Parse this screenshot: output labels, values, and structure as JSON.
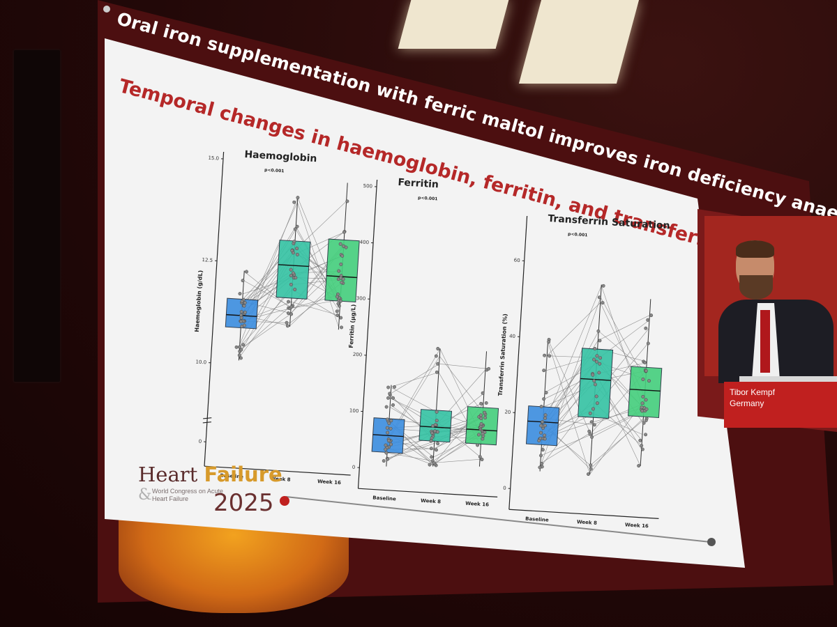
{
  "slide": {
    "header": "Oral iron supplementation with ferric maltol improves iron deficiency anaemia in patients with chr…",
    "subtitle": "Temporal changes in haemoglobin, ferritin, and transferrin saturation"
  },
  "speaker": {
    "name": "Tibor Kempf",
    "country": "Germany"
  },
  "logo": {
    "line1_a": "Heart",
    "line1_b": "Failure",
    "amp": "&",
    "line2": "World Congress on Acute Heart Failure",
    "year": "2025"
  },
  "colors": {
    "baseline": "#3c8ee0",
    "week8": "#35c3a4",
    "week16": "#45cf7d",
    "subtitle": "#b52828",
    "accent_red": "#c0201f"
  },
  "chart_data": [
    {
      "type": "box",
      "title": "Haemoglobin",
      "pvalue": "p<0.001",
      "ylabel": "Haemoglobin (g/dL)",
      "categories": [
        "Baseline",
        "Week 8",
        "Week 16"
      ],
      "yticks": [
        0,
        10.0,
        12.5,
        15.0
      ],
      "ytick_labels": [
        "0",
        "10.0",
        "12.5",
        "15.0"
      ],
      "axis_break": true,
      "boxes": [
        {
          "q1": 10.9,
          "median": 11.2,
          "q3": 11.6,
          "min": 10.1,
          "max": 12.3
        },
        {
          "q1": 11.7,
          "median": 12.5,
          "q3": 13.1,
          "min": 11.0,
          "max": 14.2
        },
        {
          "q1": 11.7,
          "median": 12.3,
          "q3": 13.2,
          "min": 11.0,
          "max": 14.6
        }
      ]
    },
    {
      "type": "box",
      "title": "Ferritin",
      "pvalue": "p<0.001",
      "ylabel": "Ferritin (µg/L)",
      "categories": [
        "Baseline",
        "Week 8",
        "Week 16"
      ],
      "yticks": [
        0,
        100,
        200,
        300,
        400,
        500
      ],
      "ytick_labels": [
        "0",
        "100",
        "200",
        "300",
        "400",
        "500"
      ],
      "boxes": [
        {
          "q1": 30,
          "median": 60,
          "q3": 90,
          "min": 5,
          "max": 150
        },
        {
          "q1": 55,
          "median": 80,
          "q3": 110,
          "min": 10,
          "max": 220
        },
        {
          "q1": 55,
          "median": 80,
          "q3": 120,
          "min": 15,
          "max": 220
        }
      ]
    },
    {
      "type": "box",
      "title": "Transferrin Saturation",
      "pvalue": "p<0.001",
      "ylabel": "Transferrin Saturation (%)",
      "categories": [
        "Baseline",
        "Week 8",
        "Week 16"
      ],
      "yticks": [
        0,
        20,
        40,
        60
      ],
      "ytick_labels": [
        "0",
        "20",
        "40",
        "60"
      ],
      "boxes": [
        {
          "q1": 12,
          "median": 18,
          "q3": 22,
          "min": 5,
          "max": 40
        },
        {
          "q1": 20,
          "median": 30,
          "q3": 38,
          "min": 5,
          "max": 55
        },
        {
          "q1": 21,
          "median": 28,
          "q3": 34,
          "min": 8,
          "max": 52
        }
      ]
    }
  ]
}
